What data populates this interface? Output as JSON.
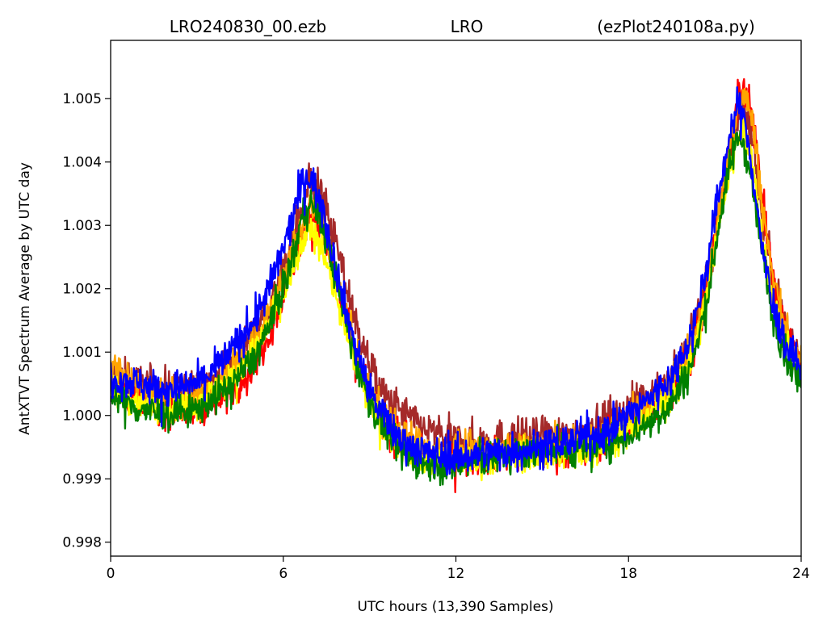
{
  "chart_data": {
    "type": "line",
    "title_parts": [
      "LRO240830_00.ezb",
      "LRO",
      "(ezPlot240108a.py)"
    ],
    "xlabel": "UTC hours  (13,390 Samples)",
    "ylabel": "AntXTVT Spectrum Average by UTC day",
    "xlim": [
      0,
      24
    ],
    "ylim": [
      0.99778,
      1.00592
    ],
    "xticks": [
      0,
      6,
      12,
      18,
      24
    ],
    "yticks": [
      0.998,
      0.999,
      1.0,
      1.001,
      1.002,
      1.003,
      1.004,
      1.005
    ],
    "ytick_labels": [
      "0.998",
      "0.999",
      "1.000",
      "1.001",
      "1.002",
      "1.003",
      "1.004",
      "1.005"
    ],
    "grid": false,
    "legend": "none",
    "series": [
      {
        "color": "#a52a2a",
        "x": [
          0,
          1,
          2,
          3,
          4,
          5,
          5.6,
          6.2,
          6.6,
          6.9,
          7.2,
          7.6,
          8.0,
          8.5,
          9.0,
          9.5,
          10,
          11,
          12,
          13,
          14,
          15,
          16,
          17,
          18,
          18.8,
          19.5,
          20.2,
          20.7,
          21.1,
          21.5,
          21.8,
          22.0,
          22.3,
          22.6,
          23.0,
          23.5,
          24
        ],
        "y": [
          1.00065,
          1.0005,
          1.00042,
          1.0004,
          1.0007,
          1.0013,
          1.0018,
          1.0025,
          1.0032,
          1.0037,
          1.0036,
          1.0031,
          1.0024,
          1.0015,
          1.0008,
          1.0003,
          1.0001,
          0.99975,
          0.9996,
          0.9996,
          0.99965,
          0.99965,
          0.9997,
          0.99985,
          1.0001,
          1.00035,
          1.0006,
          1.0012,
          1.0021,
          1.0031,
          1.0041,
          1.0047,
          1.0049,
          1.0044,
          1.0033,
          1.0022,
          1.0014,
          1.0009
        ],
        "noise": 0.00028
      },
      {
        "color": "#ff0000",
        "x": [
          0,
          1,
          2,
          3,
          4,
          5,
          5.6,
          6.2,
          6.6,
          6.9,
          7.2,
          7.6,
          8.0,
          8.5,
          9.0,
          9.5,
          10,
          11,
          12,
          13,
          14,
          15,
          16,
          17,
          18,
          18.8,
          19.5,
          20.2,
          20.7,
          21.1,
          21.5,
          21.8,
          22.0,
          22.3,
          22.6,
          23.0,
          23.5,
          24
        ],
        "y": [
          1.0005,
          1.0002,
          1.0001,
          1.0001,
          1.0003,
          1.0008,
          1.0014,
          1.0022,
          1.0028,
          1.0032,
          1.0031,
          1.0026,
          1.0018,
          1.0009,
          1.0003,
          0.99985,
          0.9996,
          0.99935,
          0.9993,
          0.99935,
          0.9994,
          0.9994,
          0.99945,
          0.99955,
          0.9998,
          1.0001,
          1.0004,
          1.001,
          1.0019,
          1.003,
          1.0041,
          1.0049,
          1.0052,
          1.0048,
          1.0036,
          1.0022,
          1.0013,
          1.0008
        ],
        "noise": 0.00025
      },
      {
        "color": "#ffa500",
        "x": [
          0,
          1,
          2,
          3,
          4,
          5,
          5.6,
          6.2,
          6.6,
          6.9,
          7.2,
          7.6,
          8.0,
          8.5,
          9.0,
          9.5,
          10,
          11,
          12,
          13,
          14,
          15,
          16,
          17,
          18,
          18.8,
          19.5,
          20.2,
          20.7,
          21.1,
          21.5,
          21.8,
          22.0,
          22.3,
          22.6,
          23.0,
          23.5,
          24
        ],
        "y": [
          1.0008,
          1.0005,
          1.0003,
          1.0003,
          1.0006,
          1.0011,
          1.0017,
          1.0024,
          1.0029,
          1.0033,
          1.0032,
          1.0027,
          1.0019,
          1.001,
          1.0004,
          1.0,
          0.99975,
          0.99945,
          0.9994,
          0.99945,
          0.9995,
          0.9995,
          0.99955,
          0.99965,
          0.9999,
          1.0002,
          1.0005,
          1.0011,
          1.002,
          1.0031,
          1.0042,
          1.0049,
          1.0051,
          1.0047,
          1.0035,
          1.0022,
          1.0013,
          1.0008
        ],
        "noise": 0.00025
      },
      {
        "color": "#ffff00",
        "x": [
          0,
          1,
          2,
          3,
          4,
          5,
          5.6,
          6.2,
          6.6,
          6.9,
          7.2,
          7.6,
          8.0,
          8.5,
          9.0,
          9.5,
          10,
          11,
          12,
          13,
          14,
          15,
          16,
          17,
          18,
          18.8,
          19.5,
          20.2,
          20.7,
          21.1,
          21.5,
          21.8,
          22.0,
          22.3,
          22.6,
          23.0,
          23.5,
          24
        ],
        "y": [
          1.0004,
          1.0002,
          1.0001,
          1.0002,
          1.0005,
          1.001,
          1.0015,
          1.0021,
          1.0026,
          1.0029,
          1.0028,
          1.0023,
          1.0016,
          1.0008,
          1.0002,
          0.9998,
          0.99955,
          0.9993,
          0.99925,
          0.9993,
          0.99935,
          0.99935,
          0.9994,
          0.9995,
          0.99975,
          1.0,
          1.0003,
          1.0009,
          1.0018,
          1.0029,
          1.0038,
          1.0044,
          1.0045,
          1.004,
          1.003,
          1.0018,
          1.0011,
          1.0006
        ],
        "noise": 0.00022
      },
      {
        "color": "#008000",
        "x": [
          0,
          1,
          2,
          3,
          4,
          5,
          5.6,
          6.2,
          6.6,
          6.9,
          7.2,
          7.6,
          8.0,
          8.5,
          9.0,
          9.5,
          10,
          11,
          12,
          13,
          14,
          15,
          16,
          17,
          18,
          18.8,
          19.5,
          20.2,
          20.7,
          21.1,
          21.5,
          21.8,
          22.0,
          22.3,
          22.6,
          23.0,
          23.5,
          24
        ],
        "y": [
          1.0003,
          1.0001,
          1.0,
          1.0001,
          1.0004,
          1.0009,
          1.0015,
          1.0023,
          1.003,
          1.0034,
          1.0032,
          1.0026,
          1.0018,
          1.0009,
          1.0002,
          0.9998,
          0.99945,
          0.9992,
          0.9992,
          0.9993,
          0.9994,
          0.99945,
          0.99945,
          0.9995,
          0.9997,
          0.9999,
          1.0002,
          1.0008,
          1.0017,
          1.0029,
          1.0039,
          1.0044,
          1.0043,
          1.0037,
          1.0027,
          1.0016,
          1.0009,
          1.0005
        ],
        "noise": 0.00024
      },
      {
        "color": "#0000ff",
        "x": [
          0,
          1,
          2,
          3,
          4,
          5,
          5.6,
          6.2,
          6.6,
          6.9,
          7.2,
          7.6,
          8.0,
          8.5,
          9.0,
          9.5,
          10,
          11,
          12,
          13,
          14,
          15,
          16,
          17,
          18,
          18.8,
          19.5,
          20.2,
          20.7,
          21.1,
          21.5,
          21.8,
          22.0,
          22.3,
          22.6,
          23.0,
          23.5,
          24
        ],
        "y": [
          1.0006,
          1.0005,
          1.0004,
          1.0005,
          1.0009,
          1.0015,
          1.0021,
          1.0029,
          1.0036,
          1.0038,
          1.0035,
          1.0028,
          1.002,
          1.0011,
          1.0004,
          0.99995,
          0.99965,
          0.9994,
          0.99935,
          0.9994,
          0.99945,
          0.9995,
          0.9996,
          0.9997,
          1.0,
          1.0003,
          1.0006,
          1.0013,
          1.0023,
          1.0034,
          1.0044,
          1.0049,
          1.0047,
          1.0039,
          1.0028,
          1.0017,
          1.0011,
          1.0007
        ],
        "noise": 0.00026
      }
    ]
  }
}
